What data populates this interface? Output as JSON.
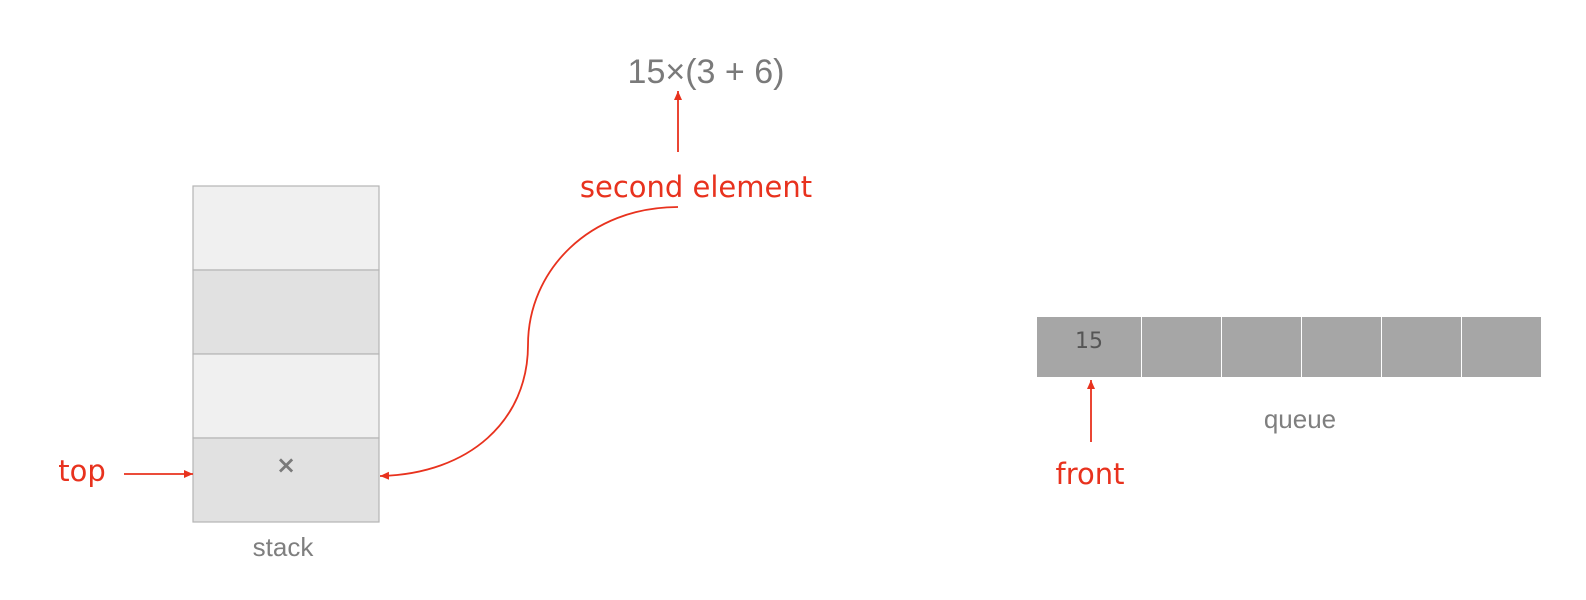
{
  "expression": "15×(3 + 6)",
  "labels": {
    "second_element": "second element",
    "top": "top",
    "front": "front",
    "stack": "stack",
    "queue": "queue"
  },
  "stack": {
    "cells": [
      "",
      "",
      "",
      "×"
    ]
  },
  "queue": {
    "cells": [
      "15",
      "",
      "",
      "",
      "",
      ""
    ]
  },
  "colors": {
    "annotation": "#e8321e",
    "text_gray": "#7a7a7a",
    "stack_light": "#f0f0f0",
    "stack_dark": "#e1e1e1",
    "stack_border": "#b5b5b5",
    "queue_cell": "#a6a6a6"
  }
}
